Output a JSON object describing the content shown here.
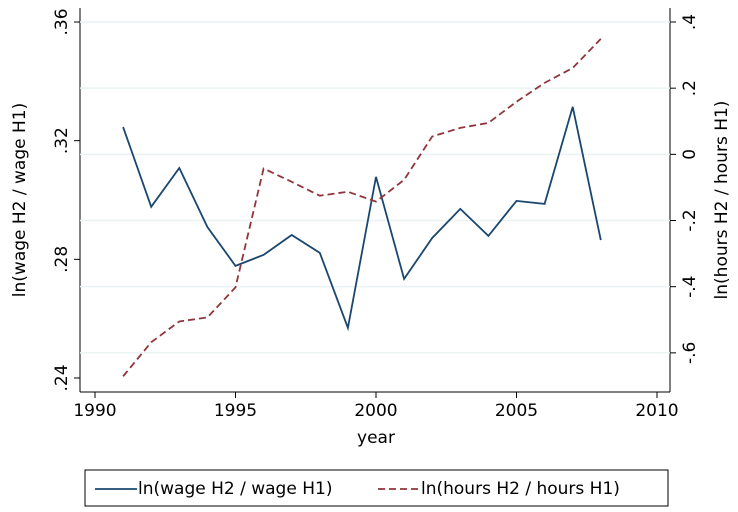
{
  "chart_data": {
    "type": "line",
    "x_label": "year",
    "y_label": "ln(wage H2 / wage H1)",
    "y2_label": "ln(hours H2 / hours H1)",
    "x": [
      1991,
      1992,
      1993,
      1994,
      1995,
      1996,
      1997,
      1998,
      1999,
      2000,
      2001,
      2002,
      2003,
      2004,
      2005,
      2006,
      2007,
      2008
    ],
    "series": [
      {
        "name": "ln(wage H2 / wage H1)",
        "color": "#1a476f",
        "dash": "solid",
        "values": [
          0.3246,
          0.2977,
          0.3108,
          0.2909,
          0.2778,
          0.2815,
          0.2882,
          0.2822,
          0.2569,
          0.3078,
          0.2734,
          0.2872,
          0.297,
          0.2879,
          0.2997,
          0.2987,
          0.3314,
          0.2865
        ]
      },
      {
        "name": "ln(hours H2 / hours H1)",
        "color": "#90353b",
        "dash": "dashed",
        "axis": "y2",
        "values": [
          -0.671,
          -0.568,
          -0.505,
          -0.493,
          -0.402,
          -0.043,
          -0.083,
          -0.125,
          -0.113,
          -0.143,
          -0.077,
          0.054,
          0.08,
          0.095,
          0.159,
          0.216,
          0.261,
          0.349
        ]
      }
    ],
    "xlim": [
      1990,
      2010
    ],
    "xticks": [
      1990,
      1995,
      2000,
      2005,
      2010
    ],
    "ylim": [
      0.24,
      0.36
    ],
    "yticks": [
      {
        "value": 0.24,
        "label": ".24"
      },
      {
        "value": 0.28,
        "label": ".28"
      },
      {
        "value": 0.32,
        "label": ".32"
      },
      {
        "value": 0.36,
        "label": ".36"
      }
    ],
    "y2lim": [
      -0.676,
      0.4
    ],
    "y2ticks": [
      {
        "value": -0.6,
        "label": "-.6"
      },
      {
        "value": -0.4,
        "label": "-.4"
      },
      {
        "value": -0.2,
        "label": "-.2"
      },
      0,
      {
        "value": 0.2,
        "label": ".2"
      },
      {
        "value": 0.4,
        "label": ".4"
      }
    ],
    "grid": true,
    "legend": "bottom"
  }
}
